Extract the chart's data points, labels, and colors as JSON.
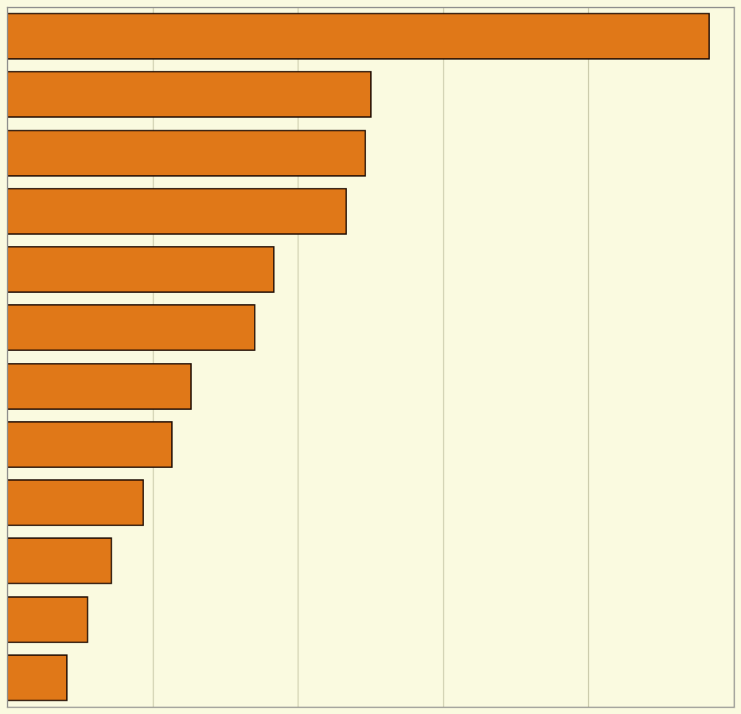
{
  "values": [
    2900,
    1500,
    1480,
    1400,
    1100,
    1020,
    760,
    680,
    560,
    430,
    330,
    245
  ],
  "bar_color": "#E07818",
  "bar_edgecolor": "#1A0800",
  "background_color": "#FAFAE0",
  "grid_color": "#C8C8A8",
  "xlim": [
    0,
    3000
  ],
  "n_gridlines": 5,
  "bar_height": 0.78,
  "figsize": [
    9.31,
    8.97
  ],
  "dpi": 100
}
